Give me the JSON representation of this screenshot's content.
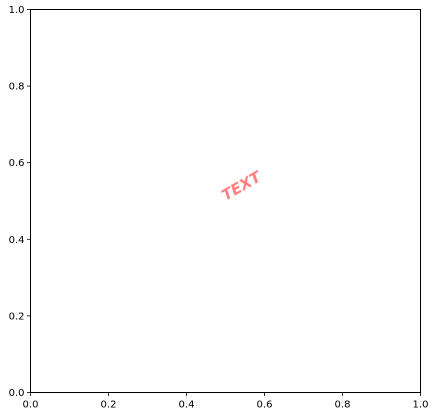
{
  "chart_data": {
    "type": "scatter",
    "title": "",
    "xlabel": "",
    "ylabel": "",
    "xlim": [
      0,
      1
    ],
    "ylim": [
      0,
      1
    ],
    "x_ticks": [
      0.0,
      0.2,
      0.4,
      0.6,
      0.8,
      1.0
    ],
    "y_ticks": [
      0.0,
      0.2,
      0.4,
      0.6,
      0.8,
      1.0
    ],
    "x_tick_labels": [
      "0.0",
      "0.2",
      "0.4",
      "0.6",
      "0.8",
      "1.0"
    ],
    "y_tick_labels": [
      "0.0",
      "0.2",
      "0.4",
      "0.6",
      "0.8",
      "1.0"
    ],
    "grid": false,
    "series": [],
    "annotations": [
      {
        "text": "TEXT",
        "x": 0.5,
        "y": 0.5,
        "rotation": 30,
        "color": "#ff8080",
        "style": "bold italic"
      }
    ]
  }
}
